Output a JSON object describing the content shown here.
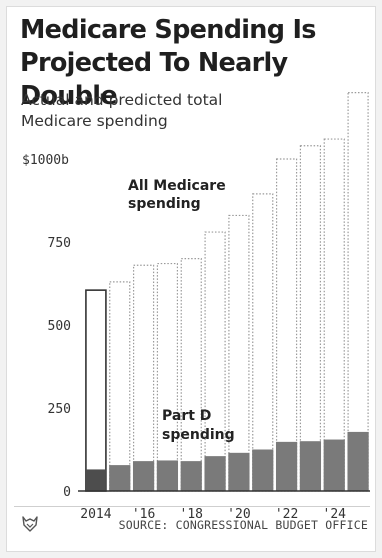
{
  "title_line1": "Medicare Spending Is",
  "title_line2": "Projected To Nearly Double",
  "subtitle_line1": "Actual and predicted total",
  "subtitle_line2": "Medicare spending",
  "source": "SOURCE: CONGRESSIONAL BUDGET OFFICE",
  "logo_icon": "fox-logo-icon",
  "colors": {
    "part_d": "#7a7a7a",
    "part_d_actual": "#4d4d4d",
    "projected_outline": "#9a9a9a",
    "actual_outline": "#333333",
    "axis": "#333333"
  },
  "chart_data": {
    "type": "bar",
    "categories": [
      "2014",
      "2015",
      "2016",
      "2017",
      "2018",
      "2019",
      "2020",
      "2021",
      "2022",
      "2023",
      "2024",
      "2025"
    ],
    "x_tick_labels": [
      "2014",
      "'16",
      "'18",
      "'20",
      "'22",
      "'24"
    ],
    "y_ticks": [
      "0",
      "250",
      "500",
      "750",
      "$1000b"
    ],
    "ylim": [
      0,
      1200
    ],
    "series": [
      {
        "name": "All Medicare spending",
        "values": [
          605,
          630,
          680,
          685,
          700,
          780,
          830,
          895,
          1000,
          1040,
          1060,
          1200
        ]
      },
      {
        "name": "Part D spending",
        "values": [
          65,
          78,
          90,
          92,
          90,
          105,
          115,
          125,
          148,
          150,
          155,
          178
        ]
      }
    ],
    "actual_categories": [
      "2014"
    ],
    "annotations": [
      {
        "line1": "All Medicare",
        "line2": "spending"
      },
      {
        "line1": "Part D",
        "line2": "spending"
      }
    ]
  }
}
